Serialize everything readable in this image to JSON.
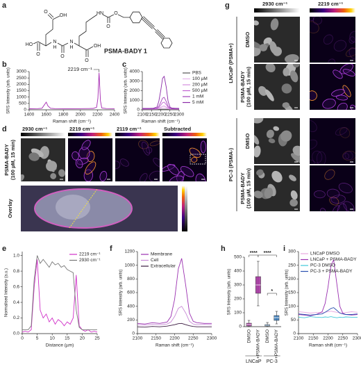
{
  "panel_a": {
    "label": "a",
    "title": "PSMA-BADY 1",
    "atoms": [
      "HO",
      "O",
      "O",
      "OH",
      "N",
      "H",
      "O",
      "N",
      "H",
      "O",
      "OH",
      "HN",
      "O",
      "O"
    ]
  },
  "panel_d": {
    "label": "d",
    "headers": [
      "2930 cm⁻¹",
      "2219 cm⁻¹",
      "2119 cm⁻¹",
      "Subtracted"
    ],
    "side_label": [
      "PSMA-BADY",
      "(100 µM, 15 min)"
    ],
    "overlay_label": "Overlay"
  },
  "panel_g": {
    "label": "g",
    "headers": [
      "2930 cm⁻¹",
      "2219 cm⁻¹"
    ],
    "groups": [
      {
        "name": "LNCaP (PSMA+)",
        "rows": [
          [
            "DMSO"
          ],
          [
            "PSMA-BADY",
            "(100 µM, 15 min)"
          ]
        ]
      },
      {
        "name": "PC-3 (PSMA-)",
        "rows": [
          [
            "DMSO"
          ],
          [
            "PSMA-BADY",
            "(100 µM, 15 min)"
          ]
        ]
      }
    ]
  },
  "chart_data": [
    {
      "type": "line",
      "label": "b",
      "x": [
        1400,
        1500,
        1550,
        1600,
        1620,
        1650,
        1700,
        1800,
        1900,
        2000,
        2100,
        2150,
        2190,
        2205,
        2219,
        2235,
        2250,
        2300,
        2400
      ],
      "series": [
        {
          "color": "#a326b0",
          "values": [
            80,
            90,
            120,
            600,
            300,
            120,
            90,
            85,
            85,
            90,
            100,
            110,
            200,
            900,
            2900,
            700,
            150,
            100,
            90
          ]
        }
      ],
      "xlim": [
        1400,
        2400
      ],
      "xticks": [
        1400,
        1600,
        1800,
        2000,
        2200,
        2400
      ],
      "ylim": [
        0,
        3000
      ],
      "yticks": [
        0,
        500,
        1000,
        1500,
        2000,
        2500,
        3000
      ],
      "x_label": "Raman shift (cm⁻¹)",
      "y_label": "SRS Intensity (arb. units)",
      "annotation": "2219 cm⁻¹"
    },
    {
      "type": "line",
      "label": "c",
      "x": [
        2100,
        2120,
        2140,
        2160,
        2180,
        2190,
        2200,
        2210,
        2219,
        2230,
        2240,
        2250,
        2260,
        2280,
        2300
      ],
      "series": [
        {
          "name": "PBS",
          "color": "#555555",
          "values": [
            60,
            60,
            60,
            60,
            60,
            60,
            60,
            60,
            60,
            60,
            60,
            60,
            60,
            60,
            60
          ]
        },
        {
          "name": "100 µM",
          "color": "#e7b5ec",
          "values": [
            70,
            70,
            70,
            72,
            80,
            100,
            140,
            190,
            200,
            150,
            100,
            80,
            72,
            70,
            70
          ]
        },
        {
          "name": "200 µM",
          "color": "#d68de0",
          "values": [
            80,
            80,
            80,
            85,
            100,
            150,
            250,
            370,
            400,
            280,
            150,
            100,
            85,
            80,
            80
          ]
        },
        {
          "name": "500 µM",
          "color": "#c162d2",
          "values": [
            90,
            90,
            92,
            95,
            130,
            250,
            480,
            750,
            800,
            550,
            250,
            130,
            100,
            92,
            90
          ]
        },
        {
          "name": "1 mM",
          "color": "#a442ba",
          "values": [
            100,
            100,
            105,
            110,
            180,
            380,
            780,
            1220,
            1300,
            880,
            380,
            180,
            120,
            105,
            100
          ]
        },
        {
          "name": "5 mM",
          "color": "#8a2aa8",
          "values": [
            150,
            150,
            155,
            170,
            300,
            900,
            2000,
            3300,
            3500,
            2400,
            900,
            300,
            180,
            160,
            150
          ]
        }
      ],
      "xlim": [
        2100,
        2300
      ],
      "xticks": [
        2100,
        2150,
        2200,
        2250,
        2300
      ],
      "ylim": [
        0,
        4000
      ],
      "yticks": [
        0,
        1000,
        2000,
        3000,
        4000
      ],
      "x_label": "Raman shift (cm⁻¹)",
      "y_label": "SRS Intensity (arb. units)",
      "legend": "right"
    },
    {
      "type": "line",
      "label": "e",
      "x": [
        0,
        1,
        2,
        3,
        4,
        5,
        6,
        7,
        8,
        9,
        10,
        11,
        12,
        13,
        14,
        15,
        16,
        17,
        18,
        19,
        20,
        21,
        22,
        23,
        24,
        25
      ],
      "series": [
        {
          "name": "2219 cm⁻¹",
          "color": "#d030c8",
          "values": [
            0.02,
            0.03,
            0.02,
            0.05,
            0.6,
            0.95,
            0.3,
            0.2,
            0.25,
            0.15,
            0.2,
            0.12,
            0.18,
            0.15,
            0.1,
            0.15,
            0.12,
            0.2,
            0.75,
            0.1,
            0.05,
            0.03,
            0.05,
            0.02,
            0.03,
            0.02
          ]
        },
        {
          "name": "2930 cm⁻¹",
          "color": "#777777",
          "values": [
            0.05,
            0.05,
            0.05,
            0.1,
            0.7,
            1.0,
            0.9,
            0.95,
            0.9,
            0.85,
            0.92,
            0.88,
            0.9,
            0.85,
            0.87,
            0.82,
            0.8,
            0.78,
            0.3,
            0.08,
            0.05,
            0.05,
            0.05,
            0.05,
            0.05,
            0.05
          ]
        }
      ],
      "xlim": [
        0,
        25
      ],
      "xticks": [
        0,
        5,
        10,
        15,
        20,
        25
      ],
      "ylim": [
        0,
        1.05
      ],
      "yticks": [
        {
          "value": 0,
          "label": "0.0"
        },
        0.2,
        0.4,
        0.6,
        0.8,
        {
          "value": 1,
          "label": "1.0"
        }
      ],
      "x_label": "Distance (µm)",
      "y_label": "Normalised Intensity (a.u.)",
      "legend": "upper right"
    },
    {
      "type": "line",
      "label": "f",
      "x": [
        2100,
        2120,
        2140,
        2160,
        2180,
        2190,
        2200,
        2210,
        2219,
        2230,
        2240,
        2250,
        2260,
        2280,
        2300
      ],
      "series": [
        {
          "name": "Membrane",
          "color": "#9a2fb0",
          "values": [
            150,
            140,
            160,
            150,
            170,
            250,
            500,
            950,
            1100,
            700,
            300,
            180,
            160,
            150,
            150
          ]
        },
        {
          "name": "Cell",
          "color": "#c88ad6",
          "values": [
            130,
            125,
            135,
            130,
            140,
            170,
            250,
            370,
            400,
            300,
            180,
            140,
            130,
            135,
            130
          ]
        },
        {
          "name": "Extracellular",
          "color": "#3a1a40",
          "values": [
            100,
            95,
            105,
            100,
            110,
            120,
            130,
            145,
            150,
            130,
            115,
            105,
            100,
            100,
            100
          ]
        }
      ],
      "xlim": [
        2100,
        2300
      ],
      "xticks": [
        2100,
        2150,
        2200,
        2250,
        2300
      ],
      "ylim": [
        0,
        1200
      ],
      "yticks": [
        0,
        200,
        400,
        600,
        800,
        1000,
        1200
      ],
      "x_label": "Raman shift (cm⁻¹)",
      "y_label": "SRS Intensity (arb. units)",
      "legend": "upper left"
    },
    {
      "type": "box",
      "label": "h",
      "categories": [
        "DMSO",
        "+PSMA-BADY",
        "DMSO",
        "+PSMA-BADY"
      ],
      "boxes": [
        {
          "min": 0,
          "q1": 5,
          "median": 15,
          "q3": 25,
          "max": 45
        },
        {
          "min": 150,
          "q1": 240,
          "median": 300,
          "q3": 360,
          "max": 470
        },
        {
          "min": 0,
          "q1": 5,
          "median": 10,
          "q3": 15,
          "max": 30
        },
        {
          "min": 20,
          "q1": 45,
          "median": 65,
          "q3": 80,
          "max": 110
        }
      ],
      "colors": [
        "#a02a9a",
        "#a02a9a",
        "#2f73b5",
        "#2f73b5"
      ],
      "groups": [
        "LNCaP",
        "PC-3"
      ],
      "annotations": [
        "****",
        "****",
        "*"
      ],
      "ylim": [
        0,
        500
      ],
      "yticks": [
        0,
        100,
        200,
        300,
        400,
        500
      ],
      "y_label": "SRS Intensity (arb. units)"
    },
    {
      "type": "line",
      "label": "i",
      "x": [
        2100,
        2120,
        2140,
        2160,
        2180,
        2190,
        2200,
        2210,
        2219,
        2230,
        2240,
        2250,
        2260,
        2280,
        2300
      ],
      "series": [
        {
          "name": "LNCaP DMSO",
          "color": "#e8a8e0",
          "values": [
            80,
            78,
            75,
            77,
            76,
            78,
            80,
            82,
            80,
            78,
            76,
            75,
            77,
            80,
            78
          ]
        },
        {
          "name": "LNCaP + PSMA-BADY",
          "color": "#9a2fb0",
          "values": [
            70,
            68,
            65,
            70,
            80,
            110,
            170,
            250,
            270,
            180,
            100,
            75,
            70,
            68,
            70
          ]
        },
        {
          "name": "PC-3 DMSO",
          "color": "#40c8d8",
          "values": [
            60,
            58,
            62,
            60,
            59,
            61,
            60,
            62,
            60,
            58,
            60,
            59,
            61,
            60,
            60
          ]
        },
        {
          "name": "PC-3 + PSMA-BADY",
          "color": "#2a4fb0",
          "values": [
            72,
            70,
            68,
            70,
            72,
            78,
            85,
            92,
            95,
            85,
            75,
            72,
            70,
            70,
            72
          ]
        }
      ],
      "xlim": [
        2100,
        2300
      ],
      "xticks": [
        2100,
        2150,
        2200,
        2250,
        2300
      ],
      "ylim": [
        0,
        300
      ],
      "yticks": [
        0,
        50,
        100,
        150,
        200,
        250,
        300
      ],
      "x_label": "Raman shift (cm⁻¹)",
      "y_label": "SRS Intensity (arb. units)",
      "legend": "top"
    }
  ]
}
